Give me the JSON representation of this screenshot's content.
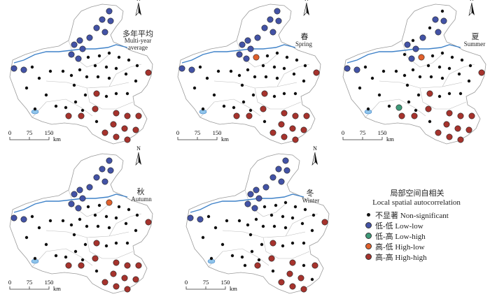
{
  "panels": [
    {
      "id": "annual",
      "zh": "多年平均",
      "en": "Multi-year average"
    },
    {
      "id": "spring",
      "zh": "春",
      "en": "Spring"
    },
    {
      "id": "summer",
      "zh": "夏",
      "en": "Summer"
    },
    {
      "id": "autumn",
      "zh": "秋",
      "en": "Autumn"
    },
    {
      "id": "winter",
      "zh": "冬",
      "en": "Winter"
    }
  ],
  "north_label": "N",
  "scale": {
    "ticks": [
      "0",
      "75",
      "150"
    ],
    "unit": "km"
  },
  "legend": {
    "title_zh": "局部空间自相关",
    "title_en": "Local spatial autocorrelation",
    "items": [
      {
        "label": "不显著 Non-significant",
        "color": "#111111"
      },
      {
        "label": "低-低 Low-low",
        "color": "#4353a6"
      },
      {
        "label": "低-高 Low-high",
        "color": "#3f9a79"
      },
      {
        "label": "高-低 High-low",
        "color": "#e0602c"
      },
      {
        "label": "高-高 High-high",
        "color": "#a6332d"
      }
    ]
  }
}
